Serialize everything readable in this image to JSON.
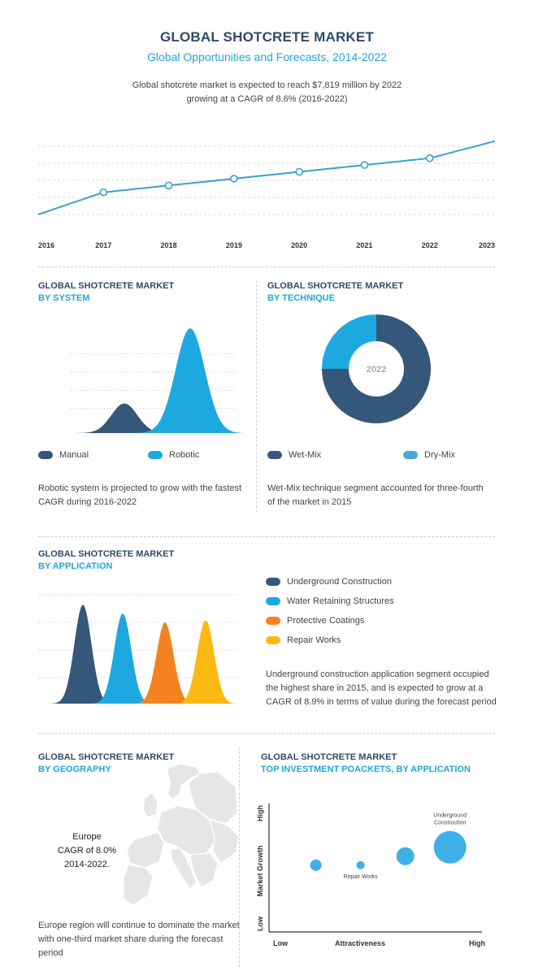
{
  "header": {
    "title": "GLOBAL SHOTCRETE MARKET",
    "subtitle": "Global Opportunities and Forecasts, 2014-2022",
    "intro_line1": "Global shotcrete market is expected to reach $7,819 million by 2022",
    "intro_line2": "growing at a CAGR of 8.6% (2016-2022)"
  },
  "colors": {
    "navy": "#355779",
    "sky": "#1ea8e0",
    "orange": "#f58220",
    "yellow": "#fdb913",
    "line": "#3aa0d0",
    "bubble": "#3fb0e6"
  },
  "chart_data": [
    {
      "type": "line",
      "title": "",
      "x": [
        "2016",
        "2017",
        "2018",
        "2019",
        "2020",
        "2021",
        "2022",
        "2023"
      ],
      "values": [
        1.0,
        2.3,
        2.7,
        3.1,
        3.5,
        3.9,
        4.3,
        5.3
      ],
      "markers_on": [
        "2017",
        "2018",
        "2019",
        "2020",
        "2021",
        "2022"
      ],
      "ylim": [
        0,
        6
      ],
      "grid": true
    },
    {
      "type": "area",
      "title": "GLOBAL SHOTCRETE MARKET BY SYSTEM",
      "series": [
        {
          "name": "Manual",
          "peak": 1.3
        },
        {
          "name": "Robotic",
          "peak": 4.6
        }
      ],
      "ylim": [
        0,
        5
      ],
      "grid": true
    },
    {
      "type": "pie",
      "title": "GLOBAL SHOTCRETE MARKET BY TECHNIQUE",
      "center_label": "2022",
      "categories": [
        "Wet-Mix",
        "Dry-Mix"
      ],
      "values": [
        75,
        25
      ]
    },
    {
      "type": "area",
      "title": "GLOBAL SHOTCRETE MARKET BY APPLICATION",
      "series": [
        {
          "name": "Underground Construction",
          "peak": 4.5
        },
        {
          "name": "Water Retaining Structures",
          "peak": 4.1
        },
        {
          "name": "Protective Coatings",
          "peak": 3.7
        },
        {
          "name": "Repair Works",
          "peak": 3.8
        }
      ],
      "ylim": [
        0,
        5
      ],
      "grid": true
    },
    {
      "type": "scatter",
      "title": "GLOBAL SHOTCRETE MARKET TOP INVESTMENT POACKETS, BY APPLICATION",
      "xlabel": "Attractiveness",
      "ylabel": "Market Growth",
      "x_ticks": [
        "Low",
        "High"
      ],
      "y_ticks": [
        "Low",
        "High"
      ],
      "points": [
        {
          "x": 0.22,
          "y": 0.52,
          "size": 7,
          "label": ""
        },
        {
          "x": 0.43,
          "y": 0.52,
          "size": 5,
          "label": "Repair Works"
        },
        {
          "x": 0.64,
          "y": 0.59,
          "size": 11,
          "label": ""
        },
        {
          "x": 0.85,
          "y": 0.66,
          "size": 20,
          "label": "Underground Construction"
        }
      ]
    }
  ],
  "system": {
    "heading1": "GLOBAL SHOTCRETE MARKET",
    "heading2": "BY SYSTEM",
    "legend": [
      "Manual",
      "Robotic"
    ],
    "text": "Robotic system is projected to grow with the fastest CAGR during 2016-2022"
  },
  "technique": {
    "heading1": "GLOBAL SHOTCRETE MARKET",
    "heading2": "BY TECHNIQUE",
    "legend": [
      "Wet-Mix",
      "Dry-Mix"
    ],
    "text": "Wet-Mix technique segment accounted for three-fourth of the market in 2015"
  },
  "application": {
    "heading1": "GLOBAL SHOTCRETE MARKET",
    "heading2": "BY APPLICATION",
    "legend": [
      "Underground Construction",
      "Water Retaining Structures",
      "Protective Coatings",
      "Repair Works"
    ],
    "text": "Underground construction application segment occupied the highest share in 2015, and is expected to grow at a CAGR of 8.9% in terms of value during the forecast period"
  },
  "geography": {
    "heading1": "GLOBAL SHOTCRETE MARKET",
    "heading2": "BY GEOGRAPHY",
    "map_line1": "Europe",
    "map_line2": "CAGR of 8.0%",
    "map_line3": "2014-2022.",
    "text": "Europe region will continue to dominate the market with one-third market share during the forecast period"
  },
  "investment": {
    "heading1": "GLOBAL SHOTCRETE MARKET",
    "heading2": "TOP INVESTMENT POACKETS, BY APPLICATION",
    "label_underground_1": "Underground",
    "label_underground_2": "Construction",
    "label_repair": "Repair Works"
  }
}
